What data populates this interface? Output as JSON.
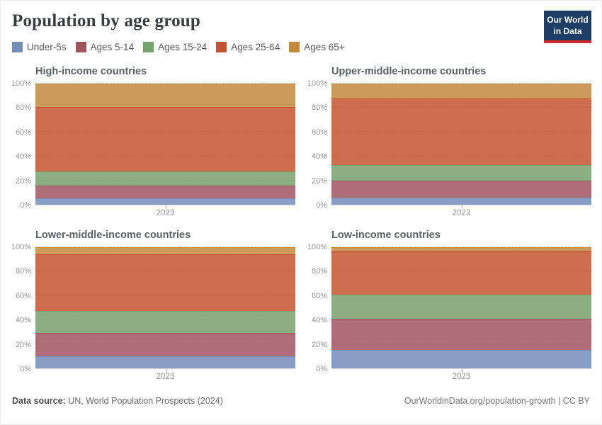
{
  "header": {
    "title": "Population by age group",
    "logo": {
      "line1": "Our World",
      "line2": "in Data"
    }
  },
  "colors": {
    "logo_navy": "#1d3d63",
    "logo_red": "#d42b2f",
    "grid": "#d6d6d6"
  },
  "legend": {
    "items": [
      {
        "label": "Under-5s",
        "slug": "under-5s",
        "color": "#738cb8"
      },
      {
        "label": "Ages 5-14",
        "slug": "ages-5-14",
        "color": "#a0545f"
      },
      {
        "label": "Ages 15-24",
        "slug": "ages-15-24",
        "color": "#77a16c"
      },
      {
        "label": "Ages 25-64",
        "slug": "ages-25-64",
        "color": "#c5532f"
      },
      {
        "label": "Ages 65+",
        "slug": "ages-65plus",
        "color": "#c18a3e"
      }
    ]
  },
  "chart_data": {
    "type": "area",
    "stacked": true,
    "relative": true,
    "x": [
      "2023"
    ],
    "ylim": [
      0,
      100
    ],
    "y_ticks": [
      "100%",
      "80%",
      "60%",
      "40%",
      "20%",
      "0%"
    ],
    "grid": "dashed horizontal",
    "legend_position": "top",
    "series_names": [
      "Under-5s",
      "Ages 5-14",
      "Ages 15-24",
      "Ages 25-64",
      "Ages 65+"
    ],
    "panels": [
      {
        "title": "High-income countries",
        "x_label": "2023",
        "values": [
          5,
          11,
          11.5,
          53,
          19.5
        ]
      },
      {
        "title": "Upper-middle-income countries",
        "x_label": "2023",
        "values": [
          6,
          14,
          13,
          55,
          12
        ]
      },
      {
        "title": "Lower-middle-income countries",
        "x_label": "2023",
        "values": [
          10,
          19.5,
          18,
          46.5,
          6
        ]
      },
      {
        "title": "Low-income countries",
        "x_label": "2023",
        "values": [
          15.5,
          25.5,
          20,
          36,
          3
        ]
      }
    ]
  },
  "footer": {
    "source_label": "Data source:",
    "source_text": "UN, World Population Prospects (2024)",
    "link_text": "OurWorldinData.org/population-growth | CC BY"
  }
}
